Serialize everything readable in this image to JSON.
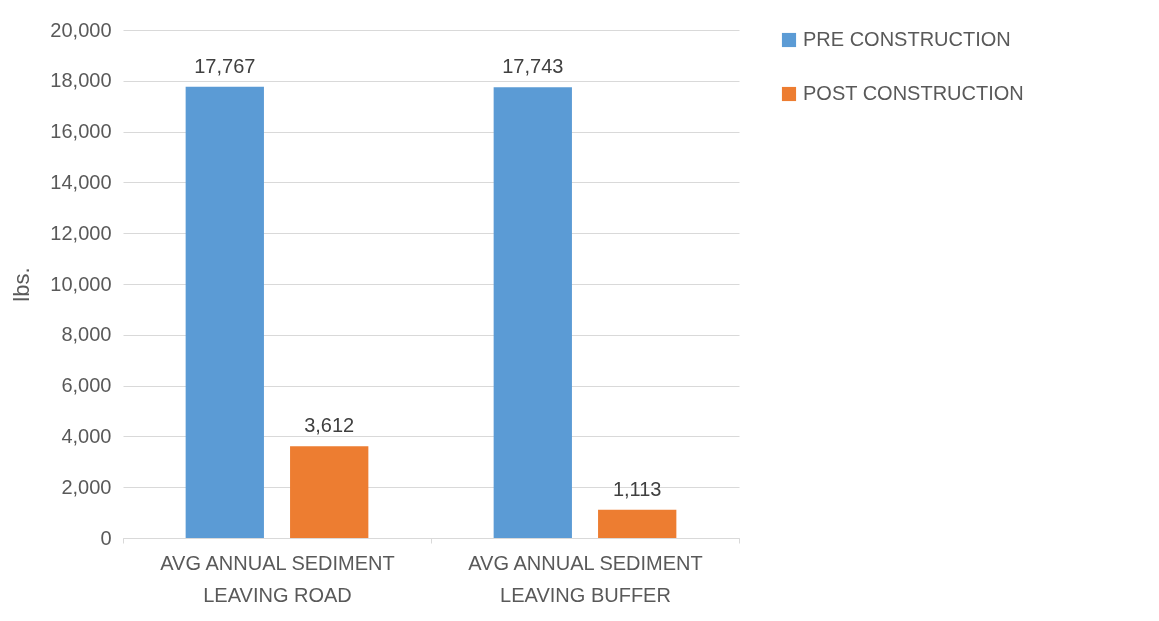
{
  "chart_data": {
    "type": "bar",
    "ylabel": "lbs.",
    "categories": [
      "AVG ANNUAL SEDIMENT LEAVING ROAD",
      "AVG ANNUAL SEDIMENT LEAVING BUFFER"
    ],
    "series": [
      {
        "name": "PRE CONSTRUCTION",
        "color": "#5b9bd5",
        "values": [
          17767,
          17743
        ],
        "value_labels": [
          "17,767",
          "17,743"
        ]
      },
      {
        "name": "POST CONSTRUCTION",
        "color": "#ed7d31",
        "values": [
          3612,
          1113
        ],
        "value_labels": [
          "3,612",
          "1,113"
        ]
      }
    ],
    "ylim": [
      0,
      20000
    ],
    "yticks": [
      0,
      {
        "value": 2000,
        "label": "2,000"
      },
      {
        "value": 4000,
        "label": "4,000"
      },
      {
        "value": 6000,
        "label": "6,000"
      },
      {
        "value": 8000,
        "label": "8,000"
      },
      {
        "value": 10000,
        "label": "10,000"
      },
      {
        "value": 12000,
        "label": "12,000"
      },
      {
        "value": 14000,
        "label": "14,000"
      },
      {
        "value": 16000,
        "label": "16,000"
      },
      {
        "value": 18000,
        "label": "18,000"
      },
      {
        "value": 20000,
        "label": "20,000"
      }
    ],
    "grid": "y",
    "legend": "right"
  }
}
